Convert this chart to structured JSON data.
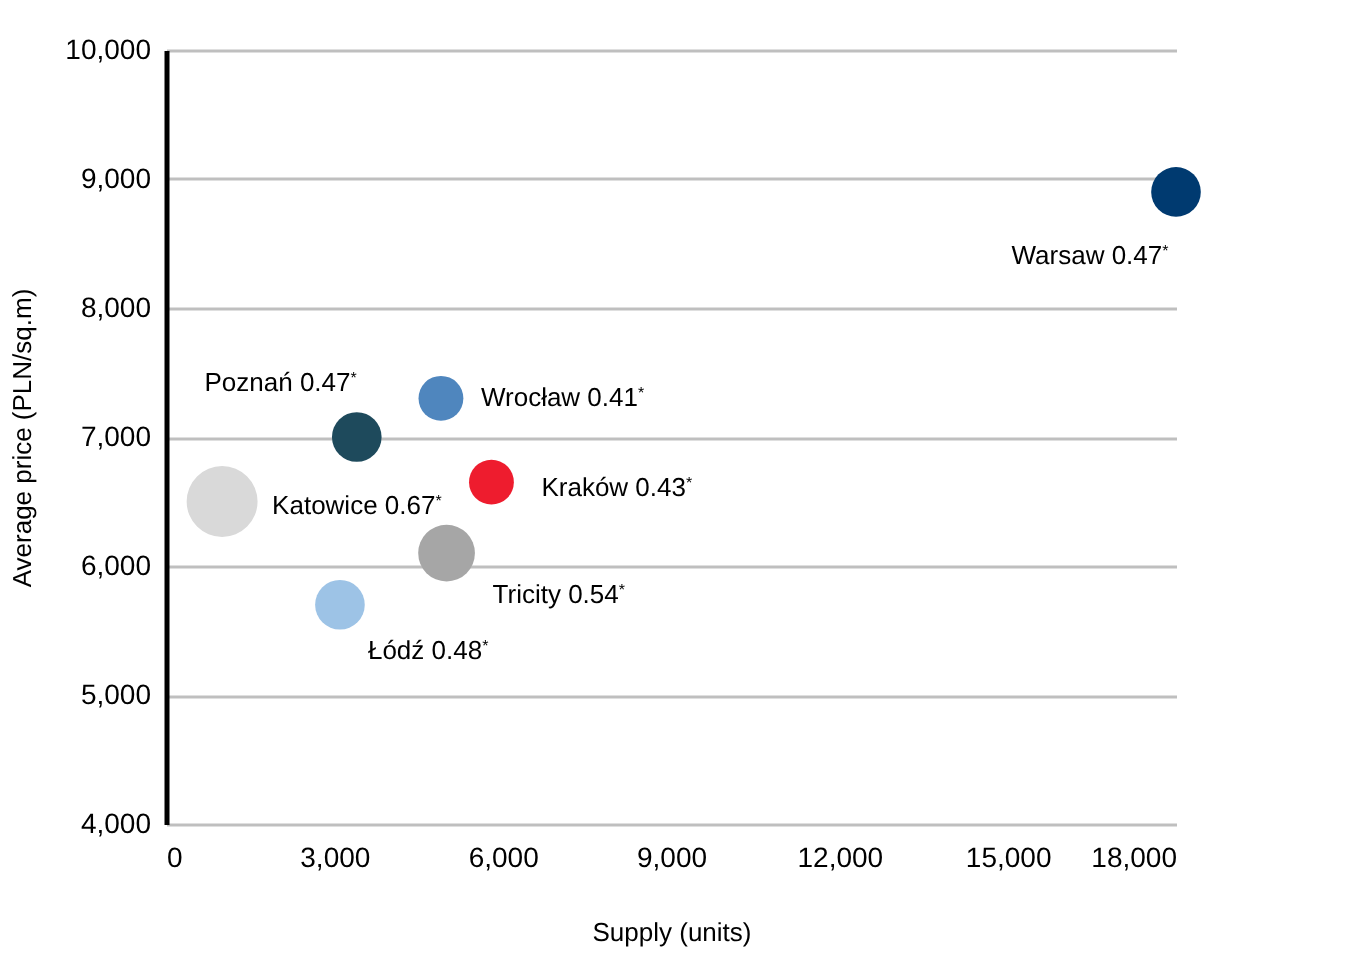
{
  "chart_data": {
    "type": "bubble",
    "xlabel": "Supply (units)",
    "ylabel": "Average price (PLN/sq.m)",
    "x": [
      18000,
      4900,
      3400,
      1000,
      5800,
      5000,
      3100
    ],
    "values": [
      8900,
      7300,
      7000,
      6500,
      6650,
      6100,
      5700
    ],
    "sizes": [
      0.49,
      0.4,
      0.49,
      1,
      0.4,
      0.64,
      0.49
    ],
    "colors": [
      "#003a70",
      "#4f86be",
      "#1e4a5c",
      "#d9d9d9",
      "#ee1c2e",
      "#a6a6a6",
      "#9dc3e6"
    ],
    "xlim": [
      0,
      18000
    ],
    "xticks": [
      0,
      {
        "value": 3000,
        "label": "3,000"
      },
      {
        "value": 6000,
        "label": "6,000"
      },
      {
        "value": 9000,
        "label": "9,000"
      },
      {
        "value": 12000,
        "label": "12,000"
      },
      {
        "value": 15000,
        "label": "15,000"
      },
      {
        "value": 18000,
        "label": "18,000"
      }
    ],
    "ylim": [
      4000,
      10000
    ],
    "yticks": [
      {
        "value": 4000,
        "label": "4,000"
      },
      {
        "value": 5000,
        "label": "5,000"
      },
      {
        "value": 6000,
        "label": "6,000"
      },
      {
        "value": 7000,
        "label": "7,000"
      },
      {
        "value": 8000,
        "label": "8,000"
      },
      {
        "value": 9000,
        "label": "9,000"
      },
      {
        "value": 10000,
        "label": "10,000"
      }
    ],
    "grid": "y",
    "annotations": [
      {
        "text": "Warsaw 0.47$^{*}$",
        "x": 18000,
        "y": 8900
      },
      {
        "text": "Wrocław 0.41$^{*}$",
        "x": 4900,
        "y": 7300
      },
      {
        "text": "Poznań 0.47$^{*}$",
        "x": 3400,
        "y": 7000
      },
      {
        "text": "Katowice 0.67$^{*}$",
        "x": 1000,
        "y": 6500
      },
      {
        "text": "Kraków 0.43$^{*}$",
        "x": 5800,
        "y": 6650
      },
      {
        "text": "Tricity 0.54$^{*}$",
        "x": 5000,
        "y": 6100
      },
      {
        "text": "Łódź 0.48$^{*}$",
        "x": 3100,
        "y": 5700
      }
    ]
  }
}
